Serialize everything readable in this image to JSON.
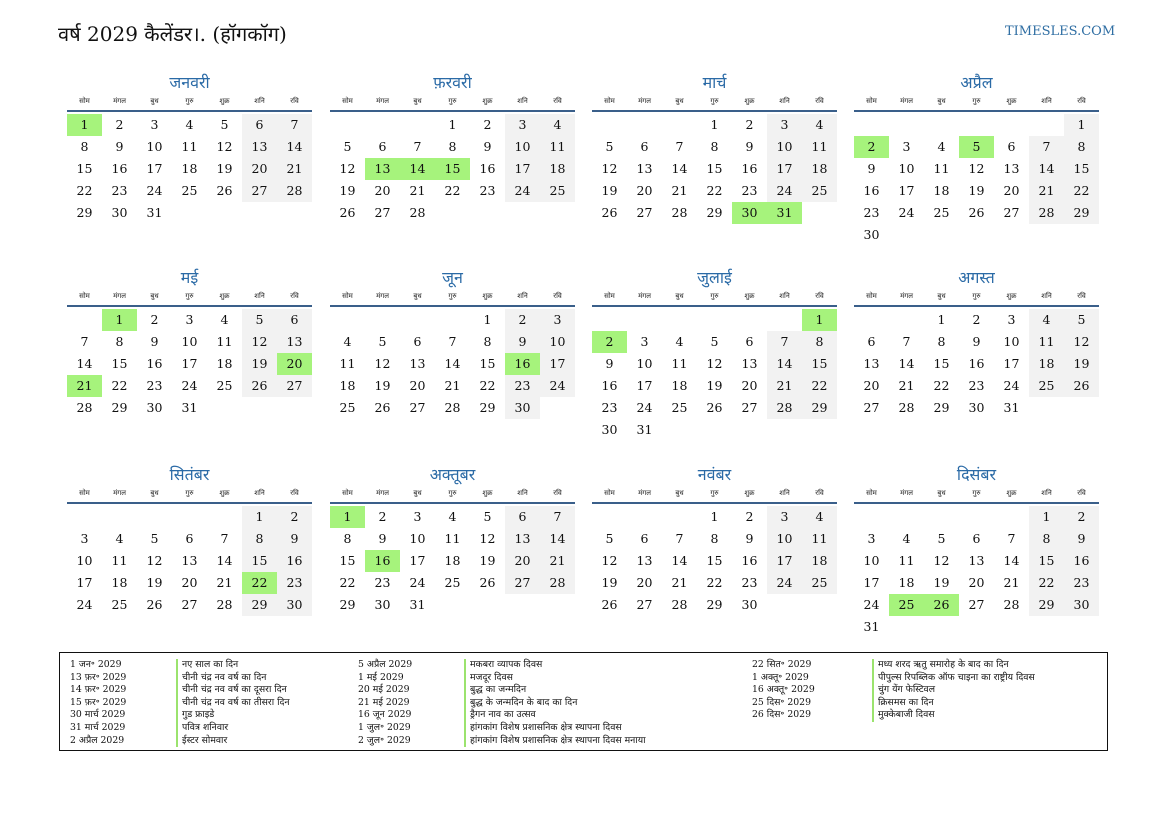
{
  "header": {
    "title": "वर्ष 2029 कैलेंडर।. (हॉगकॉग)",
    "site": "TIMESLES.COM"
  },
  "calendar": {
    "weekdays": [
      "सोम",
      "मंगल",
      "बुध",
      "गुरु",
      "शुक्र",
      "शनि",
      "रवि"
    ],
    "months": [
      {
        "name": "जनवरी",
        "offset": 0,
        "days": 31,
        "holidays": [
          1
        ]
      },
      {
        "name": "फ़रवरी",
        "offset": 3,
        "days": 28,
        "holidays": [
          13,
          14,
          15
        ]
      },
      {
        "name": "मार्च",
        "offset": 3,
        "days": 31,
        "holidays": [
          30,
          31
        ]
      },
      {
        "name": "अप्रैल",
        "offset": 6,
        "days": 30,
        "holidays": [
          2,
          5
        ]
      },
      {
        "name": "मई",
        "offset": 1,
        "days": 31,
        "holidays": [
          1,
          20,
          21
        ]
      },
      {
        "name": "जून",
        "offset": 4,
        "days": 30,
        "holidays": [
          16
        ]
      },
      {
        "name": "जुलाई",
        "offset": 6,
        "days": 31,
        "holidays": [
          1,
          2
        ]
      },
      {
        "name": "अगस्त",
        "offset": 2,
        "days": 31,
        "holidays": []
      },
      {
        "name": "सितंबर",
        "offset": 5,
        "days": 30,
        "holidays": [
          22
        ]
      },
      {
        "name": "अक्तूबर",
        "offset": 0,
        "days": 31,
        "holidays": [
          1,
          16
        ]
      },
      {
        "name": "नवंबर",
        "offset": 3,
        "days": 30,
        "holidays": []
      },
      {
        "name": "दिसंबर",
        "offset": 5,
        "days": 31,
        "holidays": [
          25,
          26
        ]
      }
    ]
  },
  "holidays": [
    [
      {
        "date": "1 जन॰ 2029",
        "name": "नए साल का दिन"
      },
      {
        "date": "13 फ़र॰ 2029",
        "name": "चीनी चंद्र नव वर्ष का दिन"
      },
      {
        "date": "14 फ़र॰ 2029",
        "name": "चीनी चंद्र नव वर्ष का दूसरा दिन"
      },
      {
        "date": "15 फ़र॰ 2029",
        "name": "चीनी चंद्र नव वर्ष का तीसरा दिन"
      },
      {
        "date": "30 मार्च 2029",
        "name": "गुड फ्राइडे"
      },
      {
        "date": "31 मार्च 2029",
        "name": "पवित्र शनिवार"
      },
      {
        "date": "2 अप्रैल 2029",
        "name": "ईस्टर सोमवार"
      }
    ],
    [
      {
        "date": "5 अप्रैल 2029",
        "name": "मकबरा व्यापक दिवस"
      },
      {
        "date": "1 मई 2029",
        "name": "मजदूर दिवस"
      },
      {
        "date": "20 मई 2029",
        "name": "बुद्ध का जन्मदिन"
      },
      {
        "date": "21 मई 2029",
        "name": "बुद्ध के जन्मदिन के बाद का दिन"
      },
      {
        "date": "16 जून 2029",
        "name": "ड्रैगन नाव का उत्सव"
      },
      {
        "date": "1 जुल॰ 2029",
        "name": "हांगकांग विशेष प्रशासनिक क्षेत्र स्थापना दिवस"
      },
      {
        "date": "2 जुल॰ 2029",
        "name": "हांगकांग विशेष प्रशासनिक क्षेत्र स्थापना दिवस मनाया"
      }
    ],
    [
      {
        "date": "22 सित॰ 2029",
        "name": "मध्य शरद ऋतु समारोह के बाद का दिन"
      },
      {
        "date": "1 अक्तू॰ 2029",
        "name": "पीपुल्स रिपब्लिक ऑफ चाइना का राष्ट्रीय दिवस"
      },
      {
        "date": "16 अक्तू॰ 2029",
        "name": "चुंग येंग फेस्टिवल"
      },
      {
        "date": "25 दिस॰ 2029",
        "name": "क्रिसमस का दिन"
      },
      {
        "date": "26 दिस॰ 2029",
        "name": "मुक्केबाजी दिवस"
      }
    ]
  ]
}
